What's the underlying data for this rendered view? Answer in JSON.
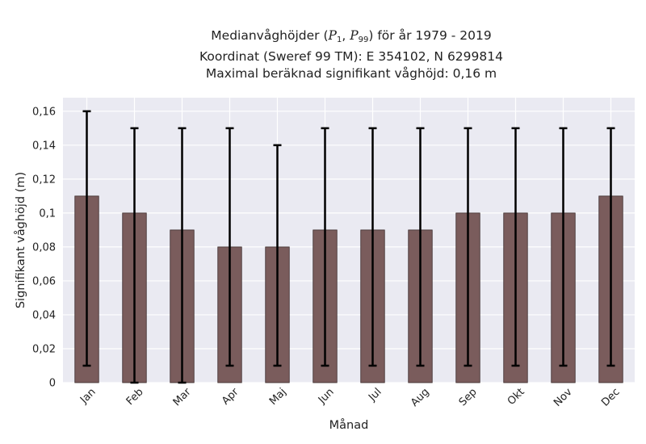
{
  "chart_data": {
    "type": "bar",
    "title_lines": [
      {
        "prefix": "Medianvåghöjder (",
        "p1_base": "P",
        "p1_sub": "1",
        "sep": ", ",
        "p99_base": "P",
        "p99_sub": "99",
        "suffix": ") för år 1979 - 2019"
      },
      "Koordinat (Sweref 99 TM): E 354102, N 6299814",
      "Maximal beräknad signifikant våghöjd: 0,16 m"
    ],
    "xlabel": "Månad",
    "ylabel": "Signifikant våghöjd (m)",
    "categories": [
      "Jan",
      "Feb",
      "Mar",
      "Apr",
      "Maj",
      "Jun",
      "Jul",
      "Aug",
      "Sep",
      "Okt",
      "Nov",
      "Dec"
    ],
    "series": [
      {
        "values": [
          0.11,
          0.1,
          0.09,
          0.08,
          0.08,
          0.09,
          0.09,
          0.09,
          0.1,
          0.1,
          0.1,
          0.11
        ],
        "p1": [
          0.01,
          0.0,
          0.0,
          0.01,
          0.01,
          0.01,
          0.01,
          0.01,
          0.01,
          0.01,
          0.01,
          0.01
        ],
        "p99": [
          0.16,
          0.15,
          0.15,
          0.15,
          0.14,
          0.15,
          0.15,
          0.15,
          0.15,
          0.15,
          0.15,
          0.15
        ]
      }
    ],
    "ylim": [
      0,
      0.168
    ],
    "yticks": [
      0,
      0.02,
      0.04,
      0.06,
      0.08,
      0.1,
      0.12,
      0.14,
      0.16
    ],
    "ytick_labels": [
      "0",
      "0,02",
      "0,04",
      "0,06",
      "0,08",
      "0,1",
      "0,12",
      "0,14",
      "0,16"
    ],
    "grid": true,
    "colors": {
      "bar": "#7a5c5c",
      "bar_edge": "#3a2a2a",
      "errorbar": "#000000",
      "plot_bg": "#eaeaf2",
      "grid": "#ffffff"
    }
  }
}
